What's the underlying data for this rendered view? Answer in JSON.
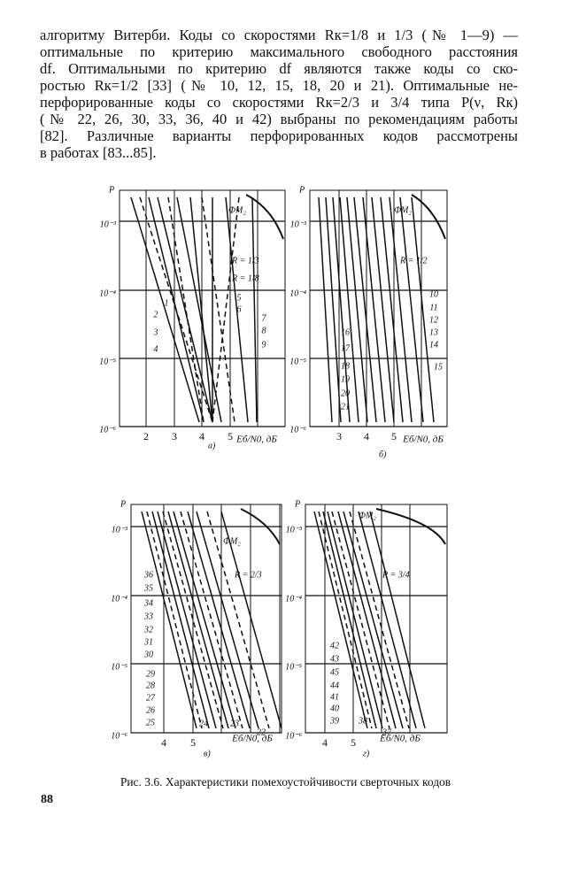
{
  "body": {
    "lines": [
      "алгоритму Витерби. Коды со скоростями Rк=1/8 и 1/3 (№ 1—9) —",
      "оптимальные по критерию максимального свободного расстояния",
      "df. Оптимальными по критерию df являются также коды со ско-",
      "ростью Rк=1/2 [33] (№ 10, 12, 15, 18, 20 и 21). Оптимальные не-",
      "перфорированные коды со скоростями Rк=2/3 и 3/4 типа P(ν, Rк)",
      "(№ 22, 26, 30, 33, 36, 40 и 42) выбраны по рекомендациям работы",
      "[82]. Различные варианты перфорированных кодов рассмотрены",
      "в работах [83...85]."
    ]
  },
  "figure": {
    "panels": [
      {
        "letter": "а)",
        "y_label": "P",
        "y_tick_labels": [
          "10⁻³",
          "10⁻⁴",
          "10⁻⁵",
          "10⁻⁶"
        ],
        "x_tick_labels": [
          "2",
          "3",
          "4",
          "5"
        ],
        "x_label": "Eб/N0, дБ",
        "modulation": "ФМ₂",
        "rate_labels": [
          "R = 1/3",
          "R = 1/8"
        ],
        "curve_labels": [
          "1",
          "2",
          "3",
          "4",
          "5",
          "6",
          "7",
          "8",
          "9"
        ]
      },
      {
        "letter": "б)",
        "y_label": "P",
        "y_tick_labels": [
          "10⁻³",
          "10⁻⁴",
          "10⁻⁵",
          "10⁻⁶"
        ],
        "x_tick_labels": [
          "3",
          "4",
          "5"
        ],
        "x_label": "Eб/N0, дБ",
        "modulation": "ФМ₂",
        "rate_labels": [
          "R = 1/2"
        ],
        "curve_labels": [
          "10",
          "11",
          "12",
          "13",
          "14",
          "15",
          "16",
          "17",
          "18",
          "19",
          "20",
          "21"
        ]
      },
      {
        "letter": "в)",
        "y_label": "P",
        "y_tick_labels": [
          "10⁻³",
          "10⁻⁴",
          "10⁻⁵",
          "10⁻⁶"
        ],
        "x_tick_labels": [
          "4",
          "5"
        ],
        "x_label": "Eб/N0, дБ",
        "modulation": "ФМ₂",
        "rate_labels": [
          "R = 2/3"
        ],
        "curve_labels": [
          "36",
          "35",
          "34",
          "33",
          "32",
          "31",
          "30",
          "29",
          "28",
          "27",
          "26",
          "25",
          "24",
          "23",
          "22"
        ]
      },
      {
        "letter": "г)",
        "y_label": "P",
        "y_tick_labels": [
          "10⁻³",
          "10⁻⁴",
          "10⁻⁵",
          "10⁻⁶"
        ],
        "x_tick_labels": [
          "4",
          "5"
        ],
        "x_label": "Eб/N0, дБ",
        "modulation": "ФМ₂",
        "rate_labels": [
          "R = 3/4"
        ],
        "curve_labels": [
          "42",
          "43",
          "45",
          "44",
          "41",
          "40",
          "39",
          "38",
          "37"
        ]
      }
    ]
  },
  "caption": "Рис. 3.6. Характеристики помехоустойчивости сверточных кодов",
  "page_number": "88"
}
